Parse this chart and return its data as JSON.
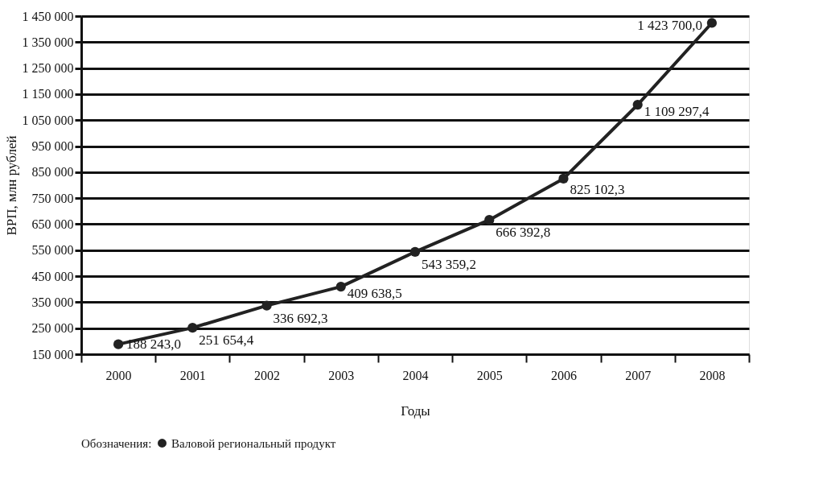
{
  "chart_data": {
    "type": "line",
    "xlabel": "Годы",
    "ylabel": "ВРП, млн рублей",
    "legend_title": "Обозначения:",
    "categories": [
      "2000",
      "2001",
      "2002",
      "2003",
      "2004",
      "2005",
      "2006",
      "2007",
      "2008"
    ],
    "series": [
      {
        "name": "Валовой региональный продукт",
        "color": "#222222",
        "values": [
          188243.0,
          251654.4,
          336692.3,
          409638.5,
          543359.2,
          666392.8,
          825102.3,
          1109297.4,
          1423700.0
        ],
        "value_labels": [
          "188 243,0",
          "251 654,4",
          "336 692,3",
          "409 638,5",
          "543 359,2",
          "666 392,8",
          "825 102,3",
          "1 109 297,4",
          "1 423 700,0"
        ]
      }
    ],
    "ylim": [
      150000,
      1450000
    ],
    "yticks": [
      {
        "value": 150000,
        "label": "150 000"
      },
      {
        "value": 250000,
        "label": "250 000"
      },
      {
        "value": 350000,
        "label": "350 000"
      },
      {
        "value": 450000,
        "label": "450 000"
      },
      {
        "value": 550000,
        "label": "550 000"
      },
      {
        "value": 650000,
        "label": "650 000"
      },
      {
        "value": 750000,
        "label": "750 000"
      },
      {
        "value": 850000,
        "label": "850 000"
      },
      {
        "value": 950000,
        "label": "950 000"
      },
      {
        "value": 1050000,
        "label": "1 050 000"
      },
      {
        "value": 1150000,
        "label": "1 150 000"
      },
      {
        "value": 1250000,
        "label": "1 250 000"
      },
      {
        "value": 1350000,
        "label": "1 350 000"
      },
      {
        "value": 1450000,
        "label": "1 450 000"
      }
    ],
    "grid": "y",
    "legend": "bottom",
    "marker": "circle",
    "line_style": "solid"
  }
}
